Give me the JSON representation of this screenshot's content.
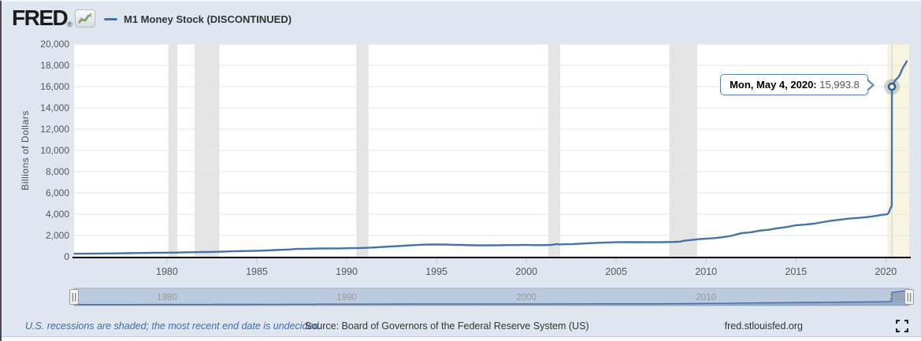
{
  "header": {
    "logo_text": "FRED",
    "logo_registered": "®",
    "legend": {
      "label": "M1 Money Stock (DISCONTINUED)",
      "color": "#4572a7"
    }
  },
  "tooltip": {
    "date_label": "Mon, May 4, 2020:",
    "value": "15,993.8"
  },
  "chart_data": {
    "type": "line",
    "title": "M1 Money Stock (DISCONTINUED)",
    "ylabel": "Billions of Dollars",
    "xlabel": "",
    "grid": true,
    "legend_position": "top-left",
    "ylim": [
      0,
      20000
    ],
    "xlim": [
      1974.83,
      2021.3
    ],
    "y_ticks": [
      0,
      2000,
      4000,
      6000,
      8000,
      10000,
      12000,
      14000,
      16000,
      18000,
      20000
    ],
    "y_tick_labels": [
      "0",
      "2,000",
      "4,000",
      "6,000",
      "8,000",
      "10,000",
      "12,000",
      "14,000",
      "16,000",
      "18,000",
      "20,000"
    ],
    "x_ticks": [
      1980,
      1985,
      1990,
      1995,
      2000,
      2005,
      2010,
      2015,
      2020
    ],
    "x_tick_labels": [
      "1980",
      "1985",
      "1990",
      "1995",
      "2000",
      "2005",
      "2010",
      "2015",
      "2020"
    ],
    "line_color": "#4572a7",
    "recession_color": "#e4e4e4",
    "recession_undecided_color": "#f7f5df",
    "recessions": [
      [
        1980.08,
        1980.58
      ],
      [
        1981.54,
        1982.92
      ],
      [
        1990.54,
        1991.21
      ],
      [
        2001.21,
        2001.88
      ],
      [
        2007.96,
        2009.5
      ]
    ],
    "recession_undecided": [
      2020.08,
      2021.3
    ],
    "highlight_point": {
      "x": 2020.34,
      "y": 15993.8,
      "crosshair": true
    },
    "series": [
      {
        "name": "M1 Money Stock (DISCONTINUED)",
        "points": [
          [
            1974.85,
            278
          ],
          [
            1975.25,
            283
          ],
          [
            1975.75,
            291
          ],
          [
            1976.25,
            300
          ],
          [
            1976.75,
            310
          ],
          [
            1977.25,
            322
          ],
          [
            1977.75,
            334
          ],
          [
            1978.25,
            347
          ],
          [
            1978.75,
            358
          ],
          [
            1979.25,
            369
          ],
          [
            1979.75,
            379
          ],
          [
            1980.1,
            388
          ],
          [
            1980.4,
            386
          ],
          [
            1980.7,
            402
          ],
          [
            1981,
            412
          ],
          [
            1981.3,
            424
          ],
          [
            1981.7,
            430
          ],
          [
            1982,
            442
          ],
          [
            1982.4,
            452
          ],
          [
            1982.8,
            468
          ],
          [
            1983.2,
            492
          ],
          [
            1983.6,
            510
          ],
          [
            1984,
            526
          ],
          [
            1984.4,
            538
          ],
          [
            1984.8,
            550
          ],
          [
            1985.2,
            574
          ],
          [
            1985.6,
            592
          ],
          [
            1986,
            626
          ],
          [
            1986.4,
            650
          ],
          [
            1986.8,
            682
          ],
          [
            1987.2,
            730
          ],
          [
            1987.6,
            744
          ],
          [
            1988,
            758
          ],
          [
            1988.4,
            770
          ],
          [
            1988.8,
            780
          ],
          [
            1989.2,
            784
          ],
          [
            1989.6,
            788
          ],
          [
            1990,
            798
          ],
          [
            1990.4,
            806
          ],
          [
            1990.8,
            820
          ],
          [
            1991.2,
            846
          ],
          [
            1991.6,
            876
          ],
          [
            1992,
            920
          ],
          [
            1992.4,
            960
          ],
          [
            1992.8,
            995
          ],
          [
            1993.2,
            1040
          ],
          [
            1993.6,
            1085
          ],
          [
            1994,
            1120
          ],
          [
            1994.4,
            1140
          ],
          [
            1994.8,
            1148
          ],
          [
            1995.2,
            1146
          ],
          [
            1995.6,
            1138
          ],
          [
            1996,
            1122
          ],
          [
            1996.4,
            1108
          ],
          [
            1996.8,
            1092
          ],
          [
            1997.2,
            1072
          ],
          [
            1997.6,
            1064
          ],
          [
            1998,
            1076
          ],
          [
            1998.5,
            1078
          ],
          [
            1999,
            1096
          ],
          [
            1999.5,
            1098
          ],
          [
            1999.95,
            1122
          ],
          [
            2000.15,
            1102
          ],
          [
            2000.6,
            1092
          ],
          [
            2001,
            1098
          ],
          [
            2001.4,
            1118
          ],
          [
            2001.7,
            1192
          ],
          [
            2001.85,
            1152
          ],
          [
            2002.2,
            1180
          ],
          [
            2002.6,
            1192
          ],
          [
            2003,
            1226
          ],
          [
            2003.5,
            1274
          ],
          [
            2004,
            1308
          ],
          [
            2004.5,
            1338
          ],
          [
            2005,
            1360
          ],
          [
            2005.5,
            1368
          ],
          [
            2006,
            1374
          ],
          [
            2006.5,
            1368
          ],
          [
            2007,
            1364
          ],
          [
            2007.5,
            1368
          ],
          [
            2008,
            1388
          ],
          [
            2008.5,
            1408
          ],
          [
            2008.8,
            1510
          ],
          [
            2009.2,
            1580
          ],
          [
            2009.6,
            1650
          ],
          [
            2010,
            1700
          ],
          [
            2010.5,
            1758
          ],
          [
            2011,
            1862
          ],
          [
            2011.4,
            1960
          ],
          [
            2011.7,
            2100
          ],
          [
            2012,
            2230
          ],
          [
            2012.5,
            2300
          ],
          [
            2013,
            2460
          ],
          [
            2013.5,
            2540
          ],
          [
            2014,
            2690
          ],
          [
            2014.5,
            2800
          ],
          [
            2015,
            2960
          ],
          [
            2015.5,
            3020
          ],
          [
            2016,
            3110
          ],
          [
            2016.5,
            3260
          ],
          [
            2017,
            3390
          ],
          [
            2017.5,
            3500
          ],
          [
            2018,
            3600
          ],
          [
            2018.5,
            3650
          ],
          [
            2019,
            3730
          ],
          [
            2019.5,
            3860
          ],
          [
            2019.9,
            3970
          ],
          [
            2020.08,
            3990
          ],
          [
            2020.17,
            4160
          ],
          [
            2020.25,
            4520
          ],
          [
            2020.33,
            4795
          ],
          [
            2020.34,
            15993.8
          ],
          [
            2020.42,
            16180
          ],
          [
            2020.5,
            16560
          ],
          [
            2020.58,
            16700
          ],
          [
            2020.67,
            16840
          ],
          [
            2020.75,
            17020
          ],
          [
            2020.83,
            17320
          ],
          [
            2020.92,
            17660
          ],
          [
            2021.0,
            17920
          ],
          [
            2021.08,
            18120
          ],
          [
            2021.17,
            18390
          ]
        ]
      }
    ]
  },
  "navigator": {
    "labels": [
      {
        "year": 1980,
        "text": "1980"
      },
      {
        "year": 1990,
        "text": "1990"
      },
      {
        "year": 2000,
        "text": "2000"
      },
      {
        "year": 2010,
        "text": "2010"
      },
      {
        "year": 2020,
        "text": "2020"
      }
    ],
    "track_color": "#bccadf",
    "line_color": "#4a6da0"
  },
  "footer": {
    "recession_note": "U.S. recessions are shaded; the most recent end date is undecided.",
    "source": "Source: Board of Governors of the Federal Reserve System (US)",
    "site": "fred.stlouisfed.org"
  }
}
